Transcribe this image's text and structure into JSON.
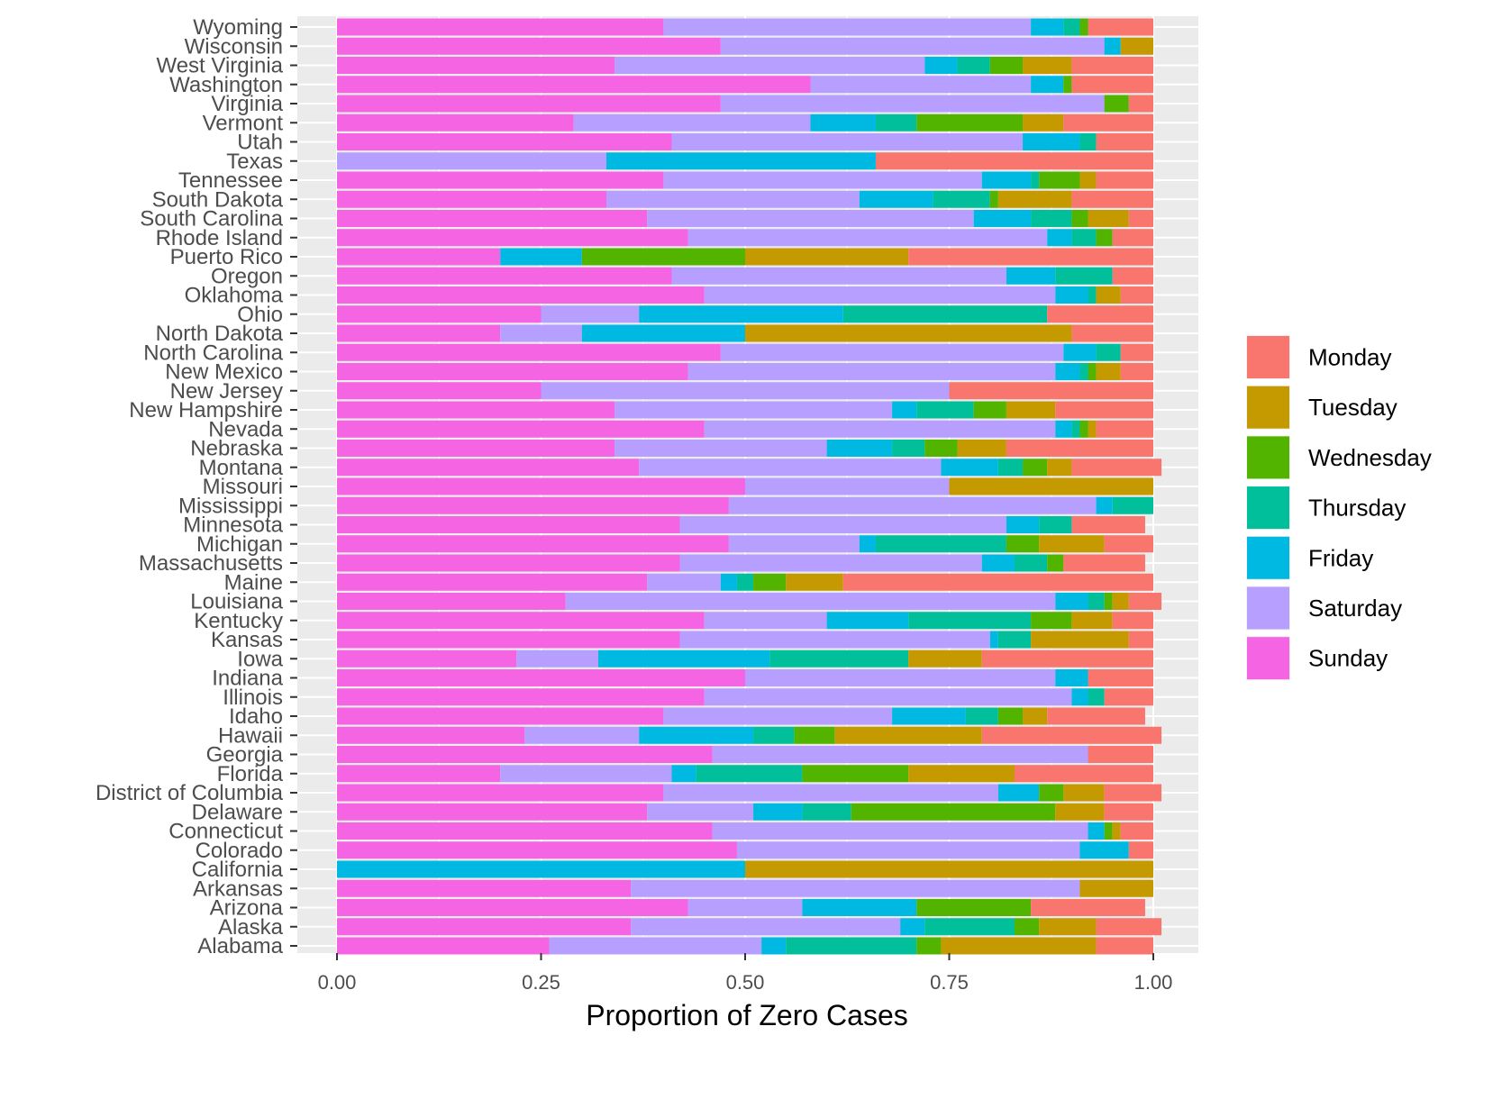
{
  "chart_data": {
    "type": "bar",
    "orientation": "horizontal",
    "stacked": true,
    "xlabel": "Proportion of Zero Cases",
    "ylabel": "",
    "xlim": [
      0,
      1
    ],
    "xticks": [
      "0.00",
      "0.25",
      "0.50",
      "0.75",
      "1.00"
    ],
    "grid": true,
    "legend_position": "right",
    "categories": [
      "Wyoming",
      "Wisconsin",
      "West Virginia",
      "Washington",
      "Virginia",
      "Vermont",
      "Utah",
      "Texas",
      "Tennessee",
      "South Dakota",
      "South Carolina",
      "Rhode Island",
      "Puerto Rico",
      "Oregon",
      "Oklahoma",
      "Ohio",
      "North Dakota",
      "North Carolina",
      "New Mexico",
      "New Jersey",
      "New Hampshire",
      "Nevada",
      "Nebraska",
      "Montana",
      "Missouri",
      "Mississippi",
      "Minnesota",
      "Michigan",
      "Massachusetts",
      "Maine",
      "Louisiana",
      "Kentucky",
      "Kansas",
      "Iowa",
      "Indiana",
      "Illinois",
      "Idaho",
      "Hawaii",
      "Georgia",
      "Florida",
      "District of Columbia",
      "Delaware",
      "Connecticut",
      "Colorado",
      "California",
      "Arkansas",
      "Arizona",
      "Alaska",
      "Alabama"
    ],
    "series": [
      {
        "name": "Sunday",
        "color": "#F564E3",
        "values": [
          0.4,
          0.47,
          0.34,
          0.58,
          0.47,
          0.29,
          0.41,
          0.0,
          0.4,
          0.33,
          0.38,
          0.43,
          0.2,
          0.41,
          0.45,
          0.25,
          0.2,
          0.47,
          0.43,
          0.25,
          0.34,
          0.45,
          0.34,
          0.37,
          0.5,
          0.48,
          0.42,
          0.48,
          0.42,
          0.38,
          0.28,
          0.45,
          0.42,
          0.22,
          0.5,
          0.45,
          0.4,
          0.23,
          0.46,
          0.2,
          0.4,
          0.38,
          0.46,
          0.49,
          0.0,
          0.36,
          0.43,
          0.36,
          0.26
        ]
      },
      {
        "name": "Saturday",
        "color": "#B79FFF",
        "values": [
          0.45,
          0.47,
          0.38,
          0.27,
          0.47,
          0.29,
          0.43,
          0.33,
          0.39,
          0.31,
          0.4,
          0.44,
          0.0,
          0.41,
          0.43,
          0.12,
          0.1,
          0.42,
          0.45,
          0.5,
          0.34,
          0.43,
          0.26,
          0.37,
          0.25,
          0.45,
          0.4,
          0.16,
          0.37,
          0.09,
          0.6,
          0.15,
          0.38,
          0.1,
          0.38,
          0.45,
          0.28,
          0.14,
          0.46,
          0.21,
          0.41,
          0.13,
          0.46,
          0.42,
          0.0,
          0.55,
          0.14,
          0.33,
          0.26
        ]
      },
      {
        "name": "Friday",
        "color": "#00B9E3",
        "values": [
          0.04,
          0.02,
          0.04,
          0.04,
          0.0,
          0.08,
          0.07,
          0.33,
          0.06,
          0.09,
          0.07,
          0.03,
          0.1,
          0.06,
          0.04,
          0.25,
          0.2,
          0.04,
          0.03,
          0.0,
          0.03,
          0.02,
          0.08,
          0.07,
          0.0,
          0.02,
          0.04,
          0.02,
          0.04,
          0.02,
          0.04,
          0.1,
          0.01,
          0.21,
          0.04,
          0.02,
          0.09,
          0.14,
          0.0,
          0.03,
          0.05,
          0.06,
          0.02,
          0.06,
          0.5,
          0.0,
          0.14,
          0.03,
          0.03
        ]
      },
      {
        "name": "Thursday",
        "color": "#00BF9A",
        "values": [
          0.02,
          0.0,
          0.04,
          0.0,
          0.0,
          0.05,
          0.02,
          0.0,
          0.01,
          0.07,
          0.05,
          0.03,
          0.0,
          0.07,
          0.01,
          0.25,
          0.0,
          0.03,
          0.01,
          0.0,
          0.07,
          0.01,
          0.04,
          0.03,
          0.0,
          0.05,
          0.04,
          0.16,
          0.04,
          0.02,
          0.02,
          0.15,
          0.04,
          0.17,
          0.0,
          0.02,
          0.04,
          0.05,
          0.0,
          0.13,
          0.0,
          0.06,
          0.0,
          0.0,
          0.0,
          0.0,
          0.0,
          0.11,
          0.16
        ]
      },
      {
        "name": "Wednesday",
        "color": "#53B400",
        "values": [
          0.01,
          0.0,
          0.04,
          0.01,
          0.03,
          0.13,
          0.0,
          0.0,
          0.05,
          0.01,
          0.02,
          0.02,
          0.2,
          0.0,
          0.0,
          0.0,
          0.0,
          0.0,
          0.01,
          0.0,
          0.04,
          0.01,
          0.04,
          0.03,
          0.0,
          0.0,
          0.0,
          0.04,
          0.02,
          0.04,
          0.01,
          0.05,
          0.0,
          0.0,
          0.0,
          0.0,
          0.03,
          0.05,
          0.0,
          0.13,
          0.03,
          0.25,
          0.01,
          0.0,
          0.0,
          0.0,
          0.14,
          0.03,
          0.03
        ]
      },
      {
        "name": "Tuesday",
        "color": "#C49A00",
        "values": [
          0.0,
          0.04,
          0.06,
          0.0,
          0.0,
          0.05,
          0.0,
          0.0,
          0.02,
          0.09,
          0.05,
          0.0,
          0.2,
          0.0,
          0.03,
          0.0,
          0.4,
          0.0,
          0.03,
          0.0,
          0.06,
          0.01,
          0.06,
          0.03,
          0.25,
          0.0,
          0.0,
          0.08,
          0.0,
          0.07,
          0.02,
          0.05,
          0.12,
          0.09,
          0.0,
          0.0,
          0.03,
          0.18,
          0.0,
          0.13,
          0.05,
          0.06,
          0.01,
          0.0,
          0.5,
          0.09,
          0.0,
          0.07,
          0.19
        ]
      },
      {
        "name": "Monday",
        "color": "#F8766D",
        "values": [
          0.08,
          0.0,
          0.1,
          0.1,
          0.03,
          0.11,
          0.07,
          0.34,
          0.07,
          0.1,
          0.03,
          0.05,
          0.3,
          0.05,
          0.04,
          0.13,
          0.1,
          0.04,
          0.04,
          0.25,
          0.12,
          0.07,
          0.18,
          0.11,
          0.0,
          0.0,
          0.09,
          0.06,
          0.1,
          0.38,
          0.04,
          0.05,
          0.03,
          0.21,
          0.08,
          0.06,
          0.12,
          0.22,
          0.08,
          0.17,
          0.07,
          0.06,
          0.04,
          0.03,
          0.0,
          0.0,
          0.14,
          0.08,
          0.07
        ]
      }
    ],
    "legend": [
      "Monday",
      "Tuesday",
      "Wednesday",
      "Thursday",
      "Friday",
      "Saturday",
      "Sunday"
    ],
    "legend_colors": [
      "#F8766D",
      "#C49A00",
      "#53B400",
      "#00BF9A",
      "#00B9E3",
      "#B79FFF",
      "#F564E3"
    ],
    "panel_color": "#EBEBEB",
    "grid_color": "#FFFFFF"
  }
}
